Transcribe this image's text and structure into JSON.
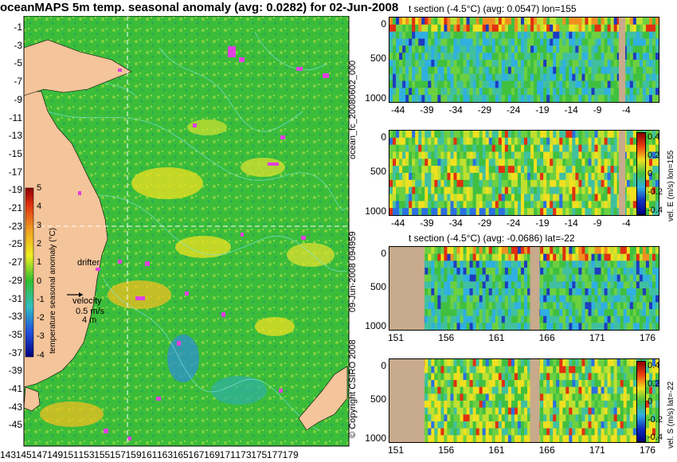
{
  "title": "oceanMAPS 5m temp. seasonal anomaly (avg: 0.0282) for 02-Jun-2008",
  "map": {
    "lat_ticks": [
      "-1",
      "-3",
      "-5",
      "-7",
      "-9",
      "-11",
      "-13",
      "-15",
      "-17",
      "-19",
      "-21",
      "-23",
      "-25",
      "-27",
      "-29",
      "-31",
      "-33",
      "-35",
      "-37",
      "-39",
      "-41",
      "-43",
      "-45"
    ],
    "lon_ticks": [
      "143",
      "145",
      "147",
      "149",
      "151",
      "153",
      "155",
      "157",
      "159",
      "161",
      "163",
      "165",
      "167",
      "169",
      "171",
      "173",
      "175",
      "177",
      "179"
    ],
    "colorbar_label": "temperature seasonal anomaly (°C)",
    "colorbar_ticks": [
      "5",
      "4",
      "3",
      "2",
      "1",
      "0",
      "-1",
      "-2",
      "-3",
      "-4"
    ],
    "drifter_label": "drifter",
    "velocity_label": "velocity",
    "velocity_scale": "0.5 m/s",
    "velocity_scale2": "4 m",
    "colors": {
      "land": "#f4c49a",
      "ocean": "#2db83a",
      "contour": "#6fe0d0",
      "drifter": "#e040e0"
    }
  },
  "side_labels": {
    "file": "ocean_fc_20080602_000",
    "date": "09-Jun-2008 094959",
    "copyright": "© Copyright CSIRO 2008"
  },
  "panels": [
    {
      "title": "t section (-4.5°C) (avg: 0.0547) lon=155",
      "x_ticks": [
        "-44",
        "-39",
        "-34",
        "-29",
        "-24",
        "-19",
        "-14",
        "-9",
        "-4"
      ],
      "y_ticks": [
        "0",
        "500",
        "1000"
      ],
      "colorbar": false
    },
    {
      "title": "",
      "x_ticks": [
        "-44",
        "-39",
        "-34",
        "-29",
        "-24",
        "-19",
        "-14",
        "-9",
        "-4"
      ],
      "y_ticks": [
        "0",
        "500",
        "1000"
      ],
      "colorbar": true,
      "colorbar_label": "vel. E (m/s) lon=155",
      "colorbar_ticks": [
        "0.4",
        "0.2",
        "0",
        "-0.2",
        "-0.4"
      ]
    },
    {
      "title": "t section (-4.5°C) (avg: -0.0686) lat=-22",
      "x_ticks": [
        "151",
        "156",
        "161",
        "166",
        "171",
        "176"
      ],
      "y_ticks": [
        "0",
        "500",
        "1000"
      ],
      "colorbar": false
    },
    {
      "title": "",
      "x_ticks": [
        "151",
        "156",
        "161",
        "166",
        "171",
        "176"
      ],
      "y_ticks": [
        "0",
        "500",
        "1000"
      ],
      "colorbar": true,
      "colorbar_label": "vel. S (m/s) lat=-22",
      "colorbar_ticks": [
        "0.4",
        "0.2",
        "0",
        "-0.2",
        "-0.4"
      ]
    }
  ],
  "chart_data": {
    "type": "heatmap",
    "title": "oceanMAPS 5m temp. seasonal anomaly (avg: 0.0282) for 02-Jun-2008",
    "xlim": [
      143,
      180
    ],
    "ylim": [
      -45,
      0
    ],
    "colorbar_range": [
      -4,
      5
    ],
    "sections": [
      {
        "name": "t section lon=155",
        "xlim": [
          -45,
          0
        ],
        "ylim": [
          1050,
          0
        ],
        "avg": 0.0547
      },
      {
        "name": "vel. E lon=155",
        "xlim": [
          -45,
          0
        ],
        "ylim": [
          1050,
          0
        ],
        "crange": [
          -0.4,
          0.4
        ]
      },
      {
        "name": "t section lat=-22",
        "xlim": [
          150,
          180
        ],
        "ylim": [
          1050,
          0
        ],
        "avg": -0.0686
      },
      {
        "name": "vel. S lat=-22",
        "xlim": [
          150,
          180
        ],
        "ylim": [
          1050,
          0
        ],
        "crange": [
          -0.4,
          0.4
        ]
      }
    ]
  }
}
